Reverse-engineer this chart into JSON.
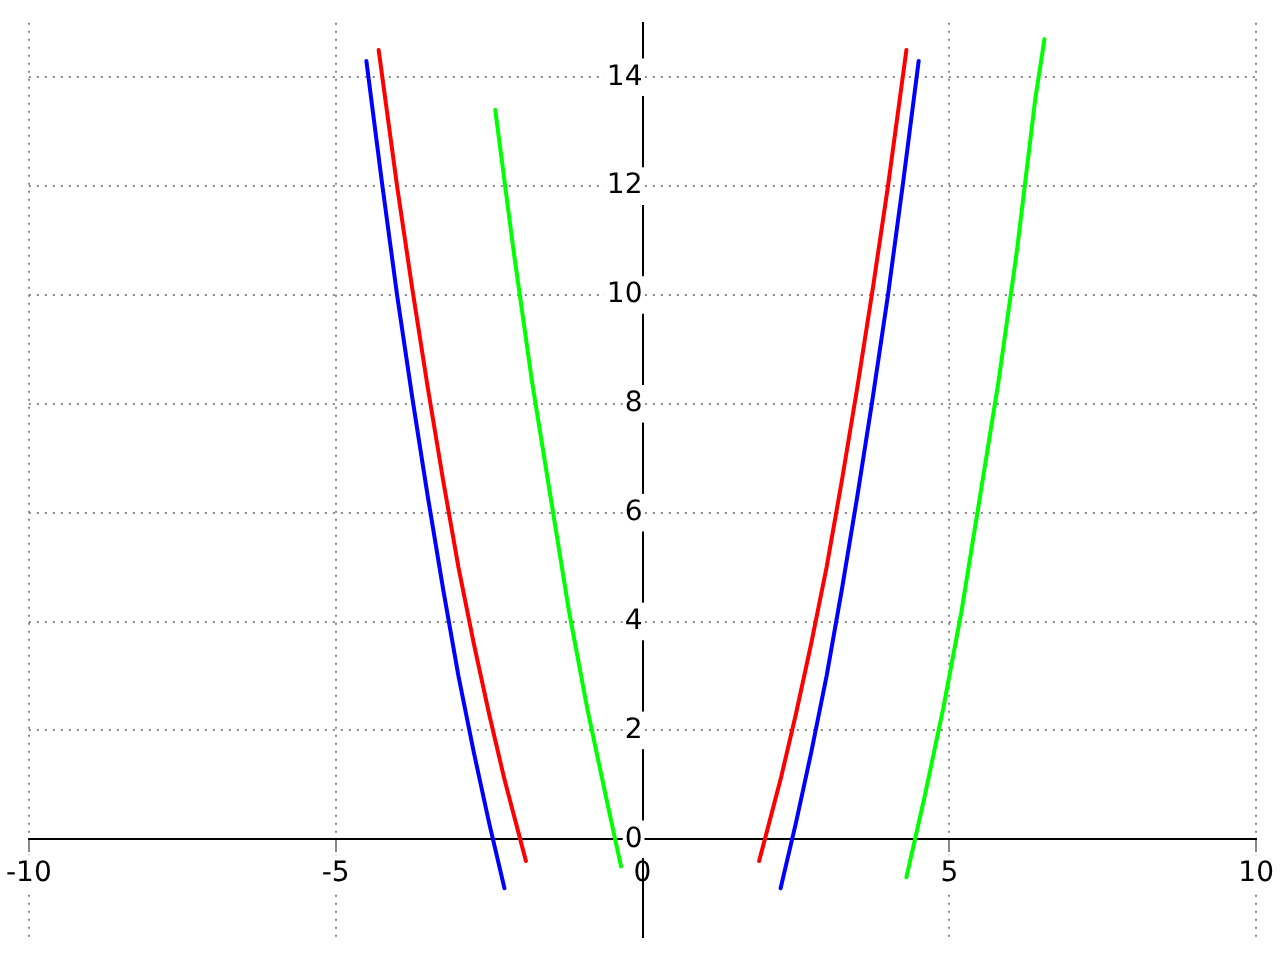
{
  "chart_data": {
    "type": "line",
    "xlim": [
      -10,
      10
    ],
    "ylim": [
      -1.8,
      15
    ],
    "xticks": [
      -10,
      -5,
      0,
      5,
      10
    ],
    "yticks": [
      0,
      2,
      4,
      6,
      8,
      10,
      12,
      14
    ],
    "grid": true,
    "legend": false,
    "marker": "none",
    "line_style": "solid",
    "series": [
      {
        "color": "#0000ff",
        "x": [
          -4.5,
          -4.25,
          -4,
          -3.75,
          -3.5,
          -3.25,
          -3,
          -2.75,
          -2.5,
          -2.25,
          0,
          2.25,
          2.5,
          2.75,
          3,
          3.25,
          3.5,
          3.75,
          4,
          4.25,
          4.5
        ],
        "values": [
          14.3,
          12.1,
          10,
          8.1,
          6.3,
          4.6,
          3,
          1.6,
          0.3,
          -0.9,
          null,
          -0.9,
          0.3,
          1.6,
          3,
          4.6,
          6.3,
          8.1,
          10,
          12.1,
          14.3
        ]
      },
      {
        "color": "#ff0000",
        "x": [
          -4.3,
          -4,
          -3.75,
          -3.5,
          -3.25,
          -3,
          -2.75,
          -2.5,
          -2.25,
          -1.9,
          0,
          1.9,
          2.25,
          2.5,
          2.75,
          3,
          3.25,
          3.5,
          3.75,
          4,
          4.3
        ],
        "values": [
          14.5,
          12,
          10.1,
          8.3,
          6.6,
          5,
          3.6,
          2.3,
          1.1,
          -0.4,
          null,
          -0.4,
          1.1,
          2.3,
          3.6,
          5,
          6.6,
          8.3,
          10.1,
          12,
          14.5
        ]
      },
      {
        "color": "#00ff00",
        "x": [
          -2.4,
          -2.1,
          -1.8,
          -1.5,
          -1.2,
          -0.9,
          -0.6,
          -0.35,
          2,
          4.3,
          4.6,
          4.9,
          5.2,
          5.5,
          5.8,
          6.1,
          6.4,
          6.55
        ],
        "values": [
          13.4,
          10.8,
          8.4,
          6.3,
          4.2,
          2.4,
          0.8,
          -0.5,
          null,
          -0.7,
          0.8,
          2.4,
          4.2,
          6.3,
          8.4,
          10.8,
          13.6,
          14.7
        ]
      }
    ]
  }
}
